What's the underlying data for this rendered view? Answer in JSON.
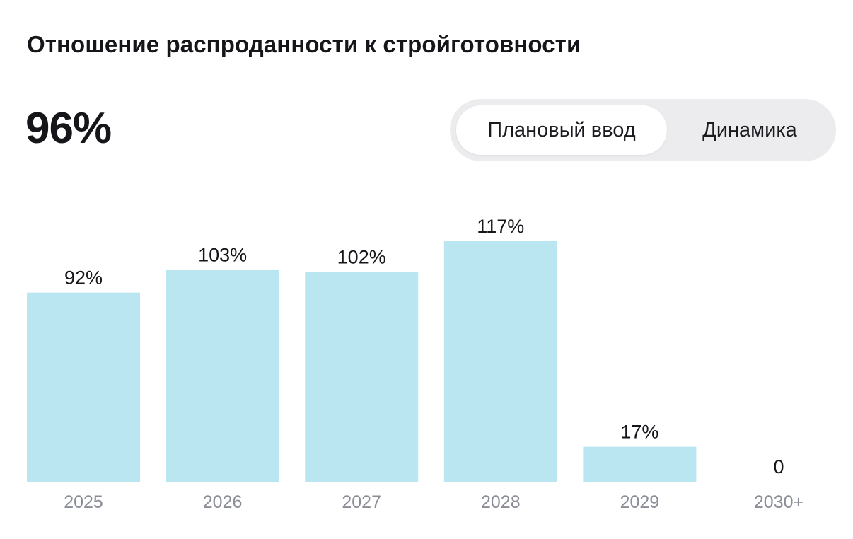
{
  "header": {
    "title": "Отношение распроданности к стройготовности",
    "big_value": "96%"
  },
  "toggle": {
    "options": [
      {
        "label": "Плановый ввод",
        "active": true
      },
      {
        "label": "Динамика",
        "active": false
      }
    ]
  },
  "colors": {
    "bar": "#bae6f2",
    "text": "#16161a",
    "axis_label": "#8a8d96",
    "toggle_bg": "#ececef"
  },
  "chart_data": {
    "type": "bar",
    "categories": [
      "2025",
      "2026",
      "2027",
      "2028",
      "2029",
      "2030+"
    ],
    "values": [
      92,
      103,
      102,
      117,
      17,
      0
    ],
    "data_labels": [
      "92%",
      "103%",
      "102%",
      "117%",
      "17%",
      "0"
    ],
    "title": "",
    "xlabel": "",
    "ylabel": "",
    "ylim": [
      0,
      117
    ],
    "grid": false,
    "legend": "none"
  }
}
